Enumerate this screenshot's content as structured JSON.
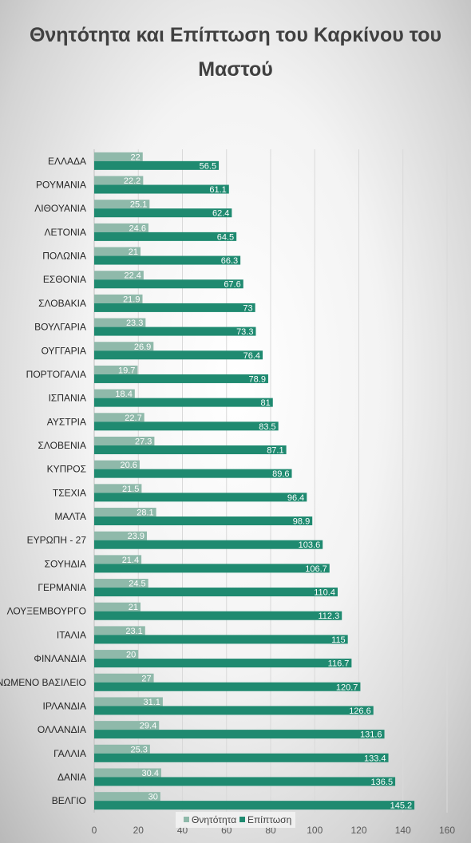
{
  "chart_data": {
    "type": "bar",
    "orientation": "horizontal",
    "title": "Θνητότητα και Επίπτωση του Καρκίνου του Μαστού",
    "title_lines": [
      "Θνητότητα και Επίπτωση του Καρκίνου του",
      "Μαστού"
    ],
    "categories": [
      "ΕΛΛΑΔΑ",
      "ΡΟΥΜΑΝΙΑ",
      "ΛΙΘΟΥΑΝΙΑ",
      "ΛΕΤΟΝΙΑ",
      "ΠΟΛΩΝΙΑ",
      "ΕΣΘΟΝΙΑ",
      "ΣΛΟΒΑΚΙΑ",
      "ΒΟΥΛΓΑΡΙΑ",
      "ΟΥΓΓΑΡΙΑ",
      "ΠΟΡΤΟΓΑΛΙΑ",
      "ΙΣΠΑΝΙΑ",
      "ΑΥΣΤΡΙΑ",
      "ΣΛΟΒΕΝΙΑ",
      "ΚΥΠΡΟΣ",
      "ΤΣΕΧΙΑ",
      "ΜΑΛΤΑ",
      "ΕΥΡΩΠΗ - 27",
      "ΣΟΥΗΔΙΑ",
      "ΓΕΡΜΑΝΙΑ",
      "ΛΟΥΞΕΜΒΟΥΡΓΟ",
      "ΙΤΑΛΙΑ",
      "ΦΙΝΛΑΝΔΙΑ",
      "ΗΝΩΜΕΝΟ ΒΑΣΙΛΕΙΟ",
      "ΙΡΛΑΝΔΙΑ",
      "ΟΛΛΑΝΔΙΑ",
      "ΓΑΛΛΙΑ",
      "ΔΑΝΙΑ",
      "ΒΕΛΓΙΟ"
    ],
    "series": [
      {
        "name": "Θνητότητα",
        "color": "#8fb9aa",
        "values": [
          22,
          22.2,
          25.1,
          24.6,
          21,
          22.4,
          21.9,
          23.3,
          26.9,
          19.7,
          18.4,
          22.7,
          27.3,
          20.6,
          21.5,
          28.1,
          23.9,
          21.4,
          24.5,
          21,
          23.1,
          20,
          27,
          31.1,
          29.4,
          25.3,
          30.4,
          30
        ]
      },
      {
        "name": "Επίπτωση",
        "color": "#1f8a70",
        "values": [
          56.5,
          61.1,
          62.4,
          64.5,
          66.3,
          67.6,
          73,
          73.3,
          76.4,
          78.9,
          81,
          83.5,
          87.1,
          89.6,
          96.4,
          98.9,
          103.6,
          106.7,
          110.4,
          112.3,
          115,
          116.7,
          120.7,
          126.6,
          131.6,
          133.4,
          136.5,
          145.2
        ]
      }
    ],
    "xlim": [
      0,
      160
    ],
    "ticks": [
      "0",
      "20",
      "40",
      "60",
      "80",
      "100",
      "120",
      "140",
      "160"
    ],
    "grid": true,
    "legend_position": "bottom",
    "data_labels": true
  }
}
